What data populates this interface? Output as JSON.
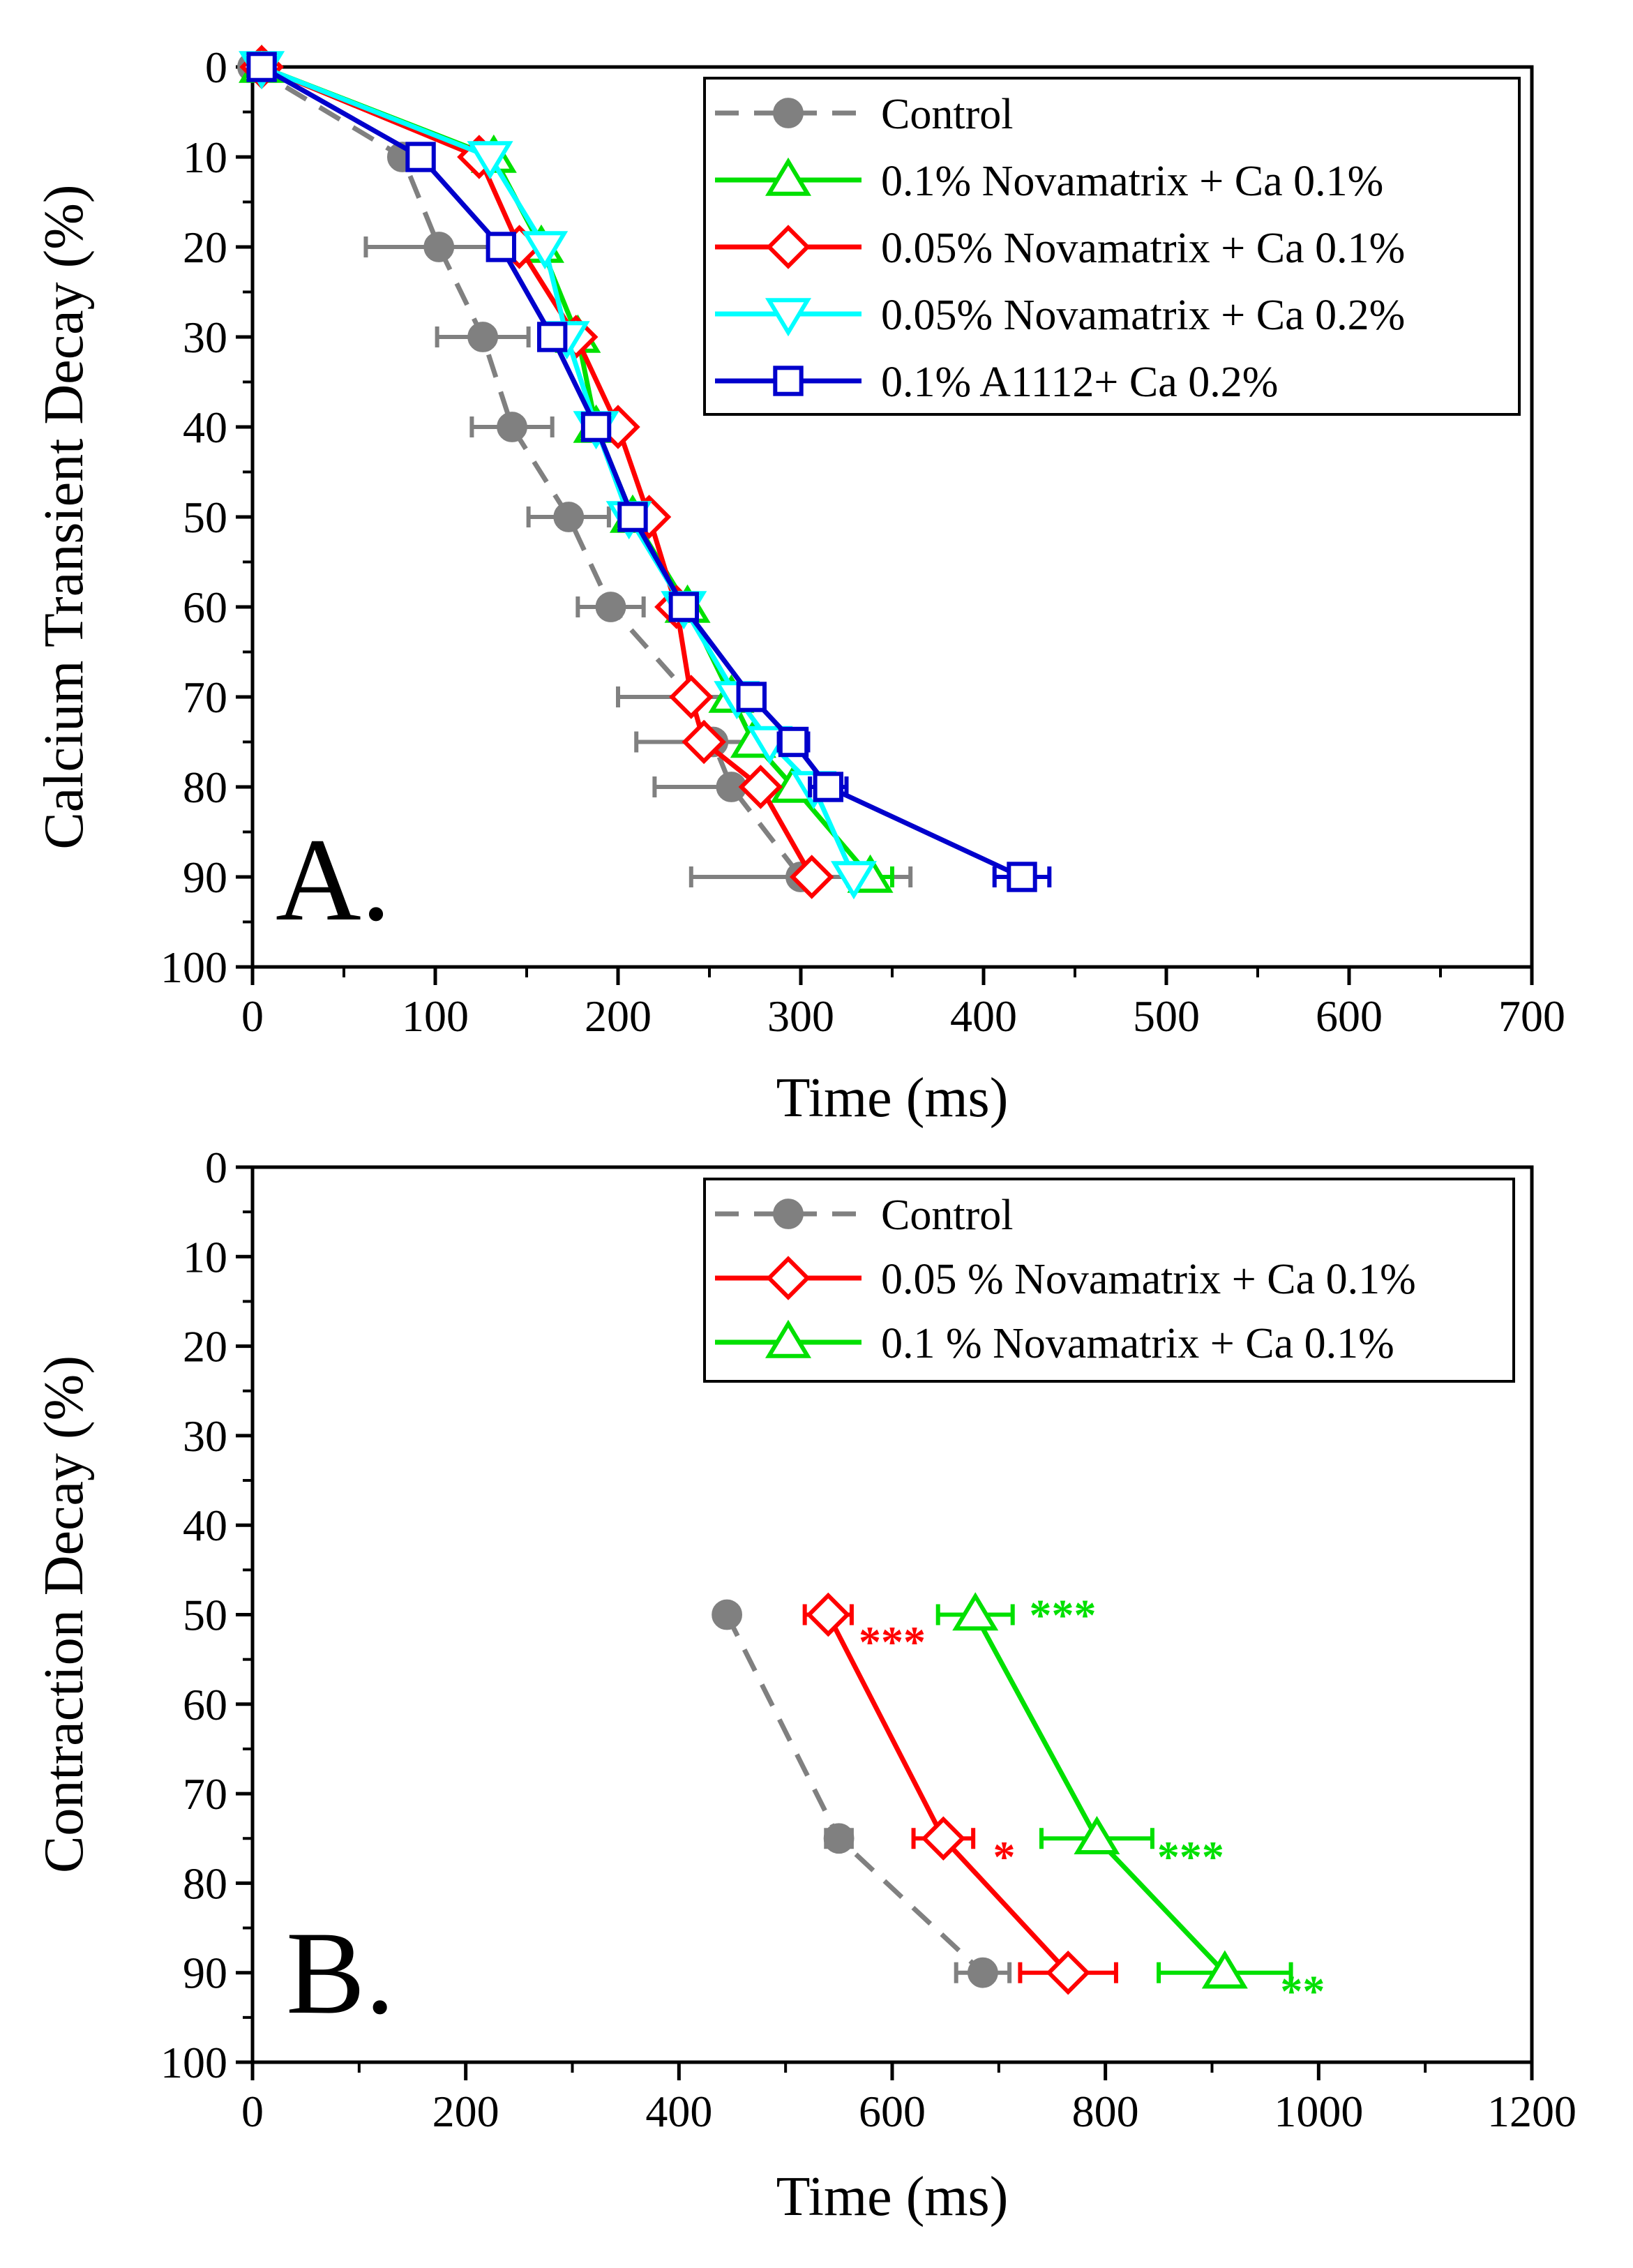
{
  "chart_data": [
    {
      "type": "line",
      "panel_label": "A.",
      "title": "",
      "xlabel": "Time (ms)",
      "ylabel": "Calcium Transient Decay (%)",
      "xlim": [
        0,
        700
      ],
      "ylim": [
        0,
        100
      ],
      "y_inverted": true,
      "xticks": [
        "0",
        "100",
        "200",
        "300",
        "400",
        "500",
        "600",
        "700"
      ],
      "yticks": [
        "0",
        "10",
        "20",
        "30",
        "40",
        "50",
        "60",
        "70",
        "80",
        "90",
        "100"
      ],
      "legend_position": "top-right",
      "series": [
        {
          "name": "Control",
          "color": "#808080",
          "dash": "dashed",
          "marker": "filled-circle",
          "x": [
            0,
            82,
            102,
            126,
            142,
            173,
            196,
            240,
            252,
            262,
            300
          ],
          "y": [
            0,
            10,
            20,
            30,
            40,
            50,
            60,
            70,
            75,
            80,
            90
          ],
          "xerr": [
            0,
            0,
            40,
            25,
            22,
            22,
            18,
            40,
            42,
            42,
            60
          ]
        },
        {
          "name": "0.1% Novamatrix + Ca 0.1%",
          "color": "#00e000",
          "dash": "solid",
          "marker": "triangle-up",
          "x": [
            5,
            132,
            158,
            178,
            188,
            208,
            238,
            262,
            274,
            296,
            338
          ],
          "y": [
            0,
            10,
            20,
            30,
            40,
            50,
            60,
            70,
            75,
            80,
            90
          ],
          "xerr": [
            0,
            0,
            0,
            0,
            0,
            0,
            0,
            0,
            0,
            0,
            12
          ]
        },
        {
          "name": "0.05% Novamatrix + Ca 0.1%",
          "color": "#ff0000",
          "dash": "solid",
          "marker": "diamond",
          "x": [
            5,
            124,
            146,
            177,
            200,
            217,
            232,
            240,
            247,
            278,
            306
          ],
          "y": [
            0,
            10,
            20,
            30,
            40,
            50,
            60,
            70,
            75,
            80,
            90
          ],
          "xerr": [
            0,
            0,
            0,
            0,
            0,
            0,
            0,
            0,
            0,
            0,
            0
          ]
        },
        {
          "name": "0.05% Novamatrix + Ca 0.2%",
          "color": "#00ffff",
          "dash": "solid",
          "marker": "triangle-down",
          "x": [
            5,
            130,
            160,
            172,
            188,
            206,
            236,
            265,
            283,
            307,
            329
          ],
          "y": [
            0,
            10,
            20,
            30,
            40,
            50,
            60,
            70,
            75,
            80,
            90
          ],
          "xerr": [
            0,
            0,
            0,
            0,
            0,
            0,
            0,
            0,
            0,
            0,
            0
          ]
        },
        {
          "name": "0.1% A1112+ Ca 0.2%",
          "color": "#0000cc",
          "dash": "solid",
          "marker": "square",
          "x": [
            5,
            92,
            136,
            164,
            188,
            208,
            236,
            273,
            296,
            315,
            421
          ],
          "y": [
            0,
            10,
            20,
            30,
            40,
            50,
            60,
            70,
            75,
            80,
            90
          ],
          "xerr": [
            0,
            0,
            0,
            0,
            0,
            0,
            0,
            7,
            8,
            10,
            15
          ]
        }
      ],
      "annotations": []
    },
    {
      "type": "line",
      "panel_label": "B.",
      "title": "",
      "xlabel": "Time (ms)",
      "ylabel": "Contraction Decay (%)",
      "xlim": [
        0,
        1200
      ],
      "ylim": [
        0,
        100
      ],
      "y_inverted": true,
      "xticks": [
        "0",
        "200",
        "400",
        "600",
        "800",
        "1000",
        "1200"
      ],
      "yticks": [
        "0",
        "10",
        "20",
        "30",
        "40",
        "50",
        "60",
        "70",
        "80",
        "90",
        "100"
      ],
      "legend_position": "top-right",
      "series": [
        {
          "name": "Control",
          "color": "#808080",
          "dash": "dashed",
          "marker": "filled-circle",
          "x": [
            445,
            550,
            685
          ],
          "y": [
            50,
            75,
            90
          ],
          "xerr": [
            0,
            12,
            25
          ]
        },
        {
          "name": "0.05 % Novamatrix + Ca 0.1%",
          "color": "#ff0000",
          "dash": "solid",
          "marker": "diamond",
          "x": [
            540,
            648,
            765
          ],
          "y": [
            50,
            75,
            90
          ],
          "xerr": [
            22,
            28,
            45
          ]
        },
        {
          "name": "0.1 % Novamatrix + Ca 0.1%",
          "color": "#00e000",
          "dash": "solid",
          "marker": "triangle-up",
          "x": [
            678,
            792,
            912
          ],
          "y": [
            50,
            75,
            90
          ],
          "xerr": [
            35,
            52,
            62
          ]
        }
      ],
      "annotations": [
        {
          "text": "***",
          "color": "#ff0000",
          "x": 600,
          "y": 53
        },
        {
          "text": "***",
          "color": "#00e000",
          "x": 760,
          "y": 50
        },
        {
          "text": "*",
          "color": "#ff0000",
          "x": 705,
          "y": 77
        },
        {
          "text": "***",
          "color": "#00e000",
          "x": 880,
          "y": 77
        },
        {
          "text": "**",
          "color": "#00e000",
          "x": 985,
          "y": 92
        }
      ]
    }
  ]
}
